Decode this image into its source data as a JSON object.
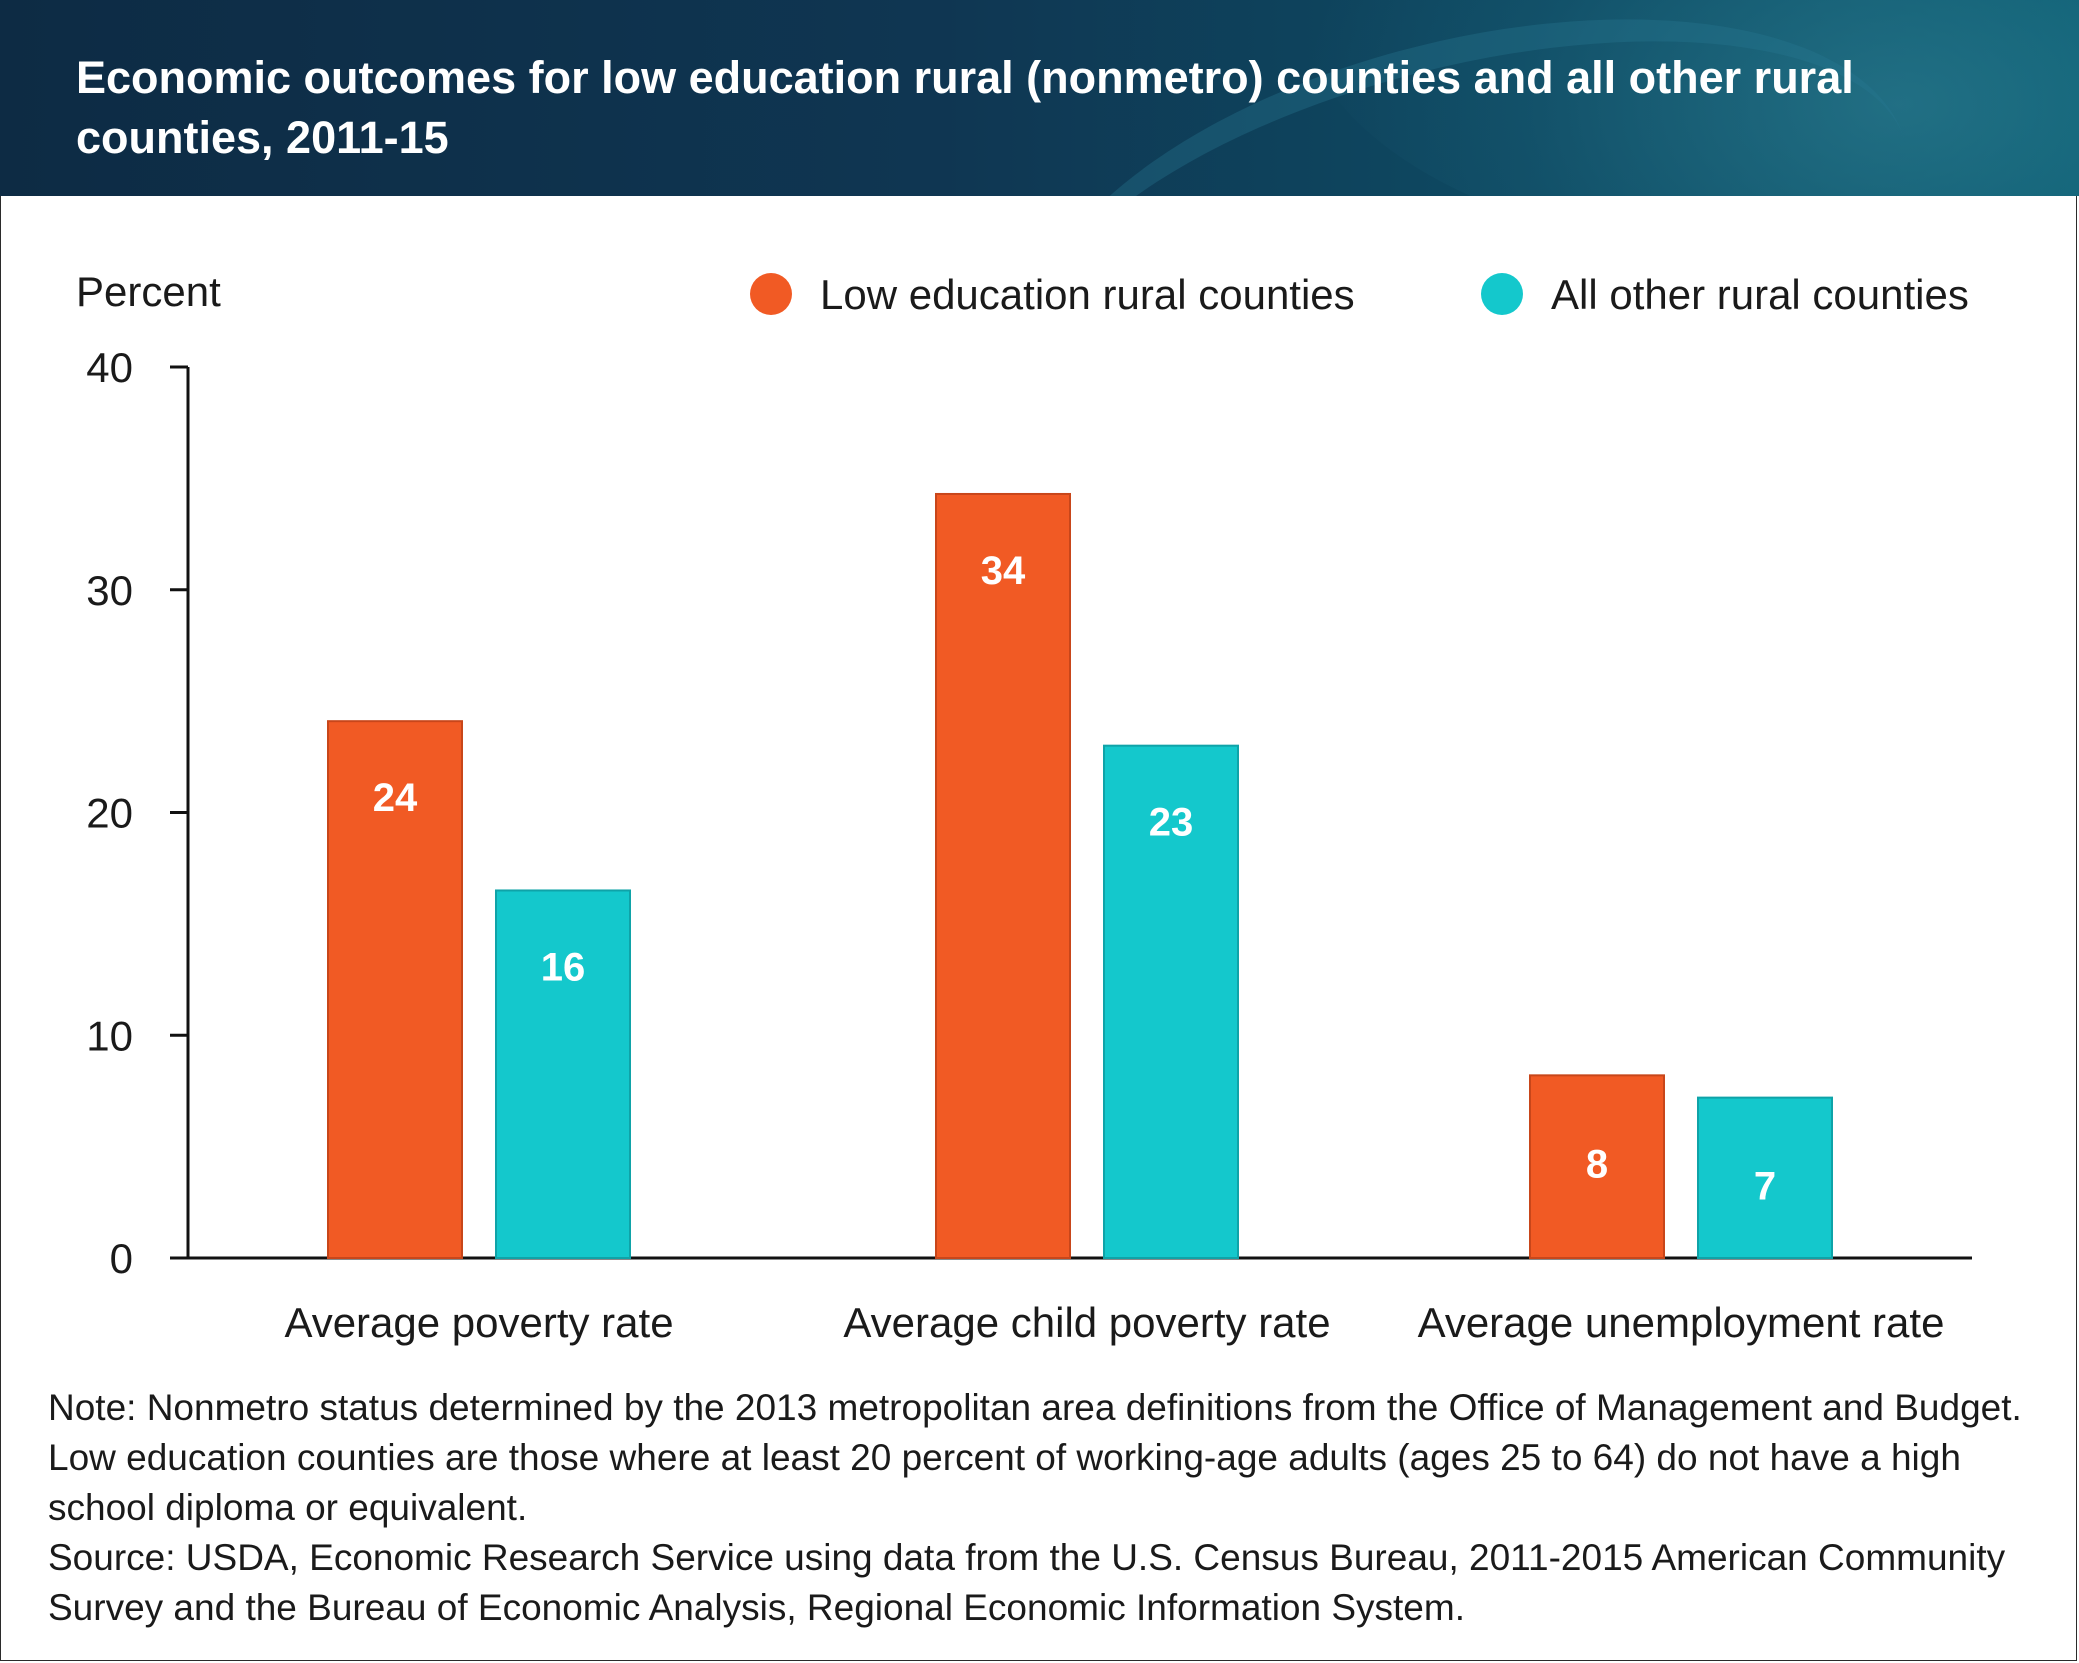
{
  "header": {
    "title": "Economic outcomes for low education rural (nonmetro) counties and all other rural counties, 2011-15"
  },
  "colors": {
    "low_education": "#f15a24",
    "all_other": "#14c8cc",
    "axis": "#111111"
  },
  "chart_data": {
    "type": "bar",
    "ylabel": "Percent",
    "ylim": [
      0,
      40
    ],
    "yticks": [
      0,
      10,
      20,
      30,
      40
    ],
    "grid": false,
    "legend_position": "top-right",
    "categories": [
      "Average poverty rate",
      "Average child poverty rate",
      "Average unemployment rate"
    ],
    "series": [
      {
        "name": "Low education rural counties",
        "values": [
          24.1,
          34.3,
          8.2
        ],
        "labels": [
          "24",
          "34",
          "8"
        ]
      },
      {
        "name": "All other rural counties",
        "values": [
          16.5,
          23.0,
          7.2
        ],
        "labels": [
          "16",
          "23",
          "7"
        ]
      }
    ]
  },
  "footer": {
    "note": "Note: Nonmetro status determined by the 2013 metropolitan area definitions from the Office of Management and Budget. Low education counties are those where at least 20 percent of working-age adults (ages 25 to 64) do not have a high school diploma or equivalent.",
    "source": "Source: USDA, Economic Research Service using data from the U.S. Census Bureau, 2011-2015 American Community Survey and the Bureau of Economic Analysis, Regional Economic Information System."
  }
}
